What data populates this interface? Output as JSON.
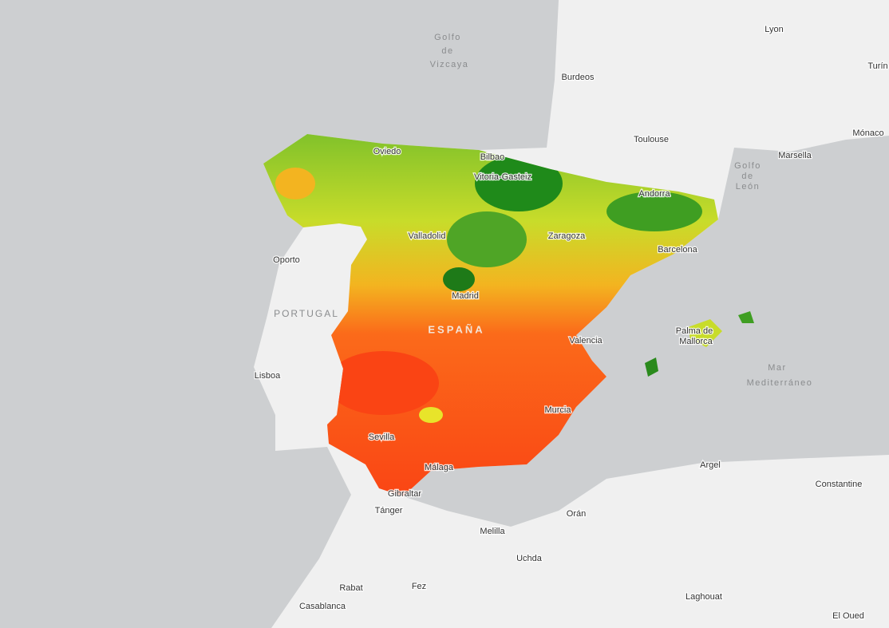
{
  "map": {
    "labels": [
      {
        "text": "Golfo"
      },
      {
        "text": "de"
      },
      {
        "text": "Vizcaya"
      },
      {
        "text": "Lyon"
      },
      {
        "text": "Turín"
      },
      {
        "text": "Burdeos"
      },
      {
        "text": "Toulouse"
      },
      {
        "text": "Mónaco"
      },
      {
        "text": "Marsella"
      },
      {
        "text": "Golfo"
      },
      {
        "text": "de"
      },
      {
        "text": "León"
      },
      {
        "text": "Oviedo"
      },
      {
        "text": "Bilbao"
      },
      {
        "text": "Vitoria-Gasteiz"
      },
      {
        "text": "Andorra"
      },
      {
        "text": "Valladolid"
      },
      {
        "text": "Zaragoza"
      },
      {
        "text": "Barcelona"
      },
      {
        "text": "Oporto"
      },
      {
        "text": "PORTUGAL"
      },
      {
        "text": "Madrid"
      },
      {
        "text": "ESPAÑA"
      },
      {
        "text": "Palma de"
      },
      {
        "text": "Mallorca"
      },
      {
        "text": "Valencia"
      },
      {
        "text": "Lisboa"
      },
      {
        "text": "Mar"
      },
      {
        "text": "Mediterráneo"
      },
      {
        "text": "Murcia"
      },
      {
        "text": "Sevilla"
      },
      {
        "text": "Málaga"
      },
      {
        "text": "Gibraltar"
      },
      {
        "text": "Tánger"
      },
      {
        "text": "Argel"
      },
      {
        "text": "Constantine"
      },
      {
        "text": "Orán"
      },
      {
        "text": "Melilla"
      },
      {
        "text": "Uchda"
      },
      {
        "text": "Rabat"
      },
      {
        "text": "Fez"
      },
      {
        "text": "Casablanca"
      },
      {
        "text": "Laghouat"
      },
      {
        "text": "El Oued"
      }
    ]
  }
}
